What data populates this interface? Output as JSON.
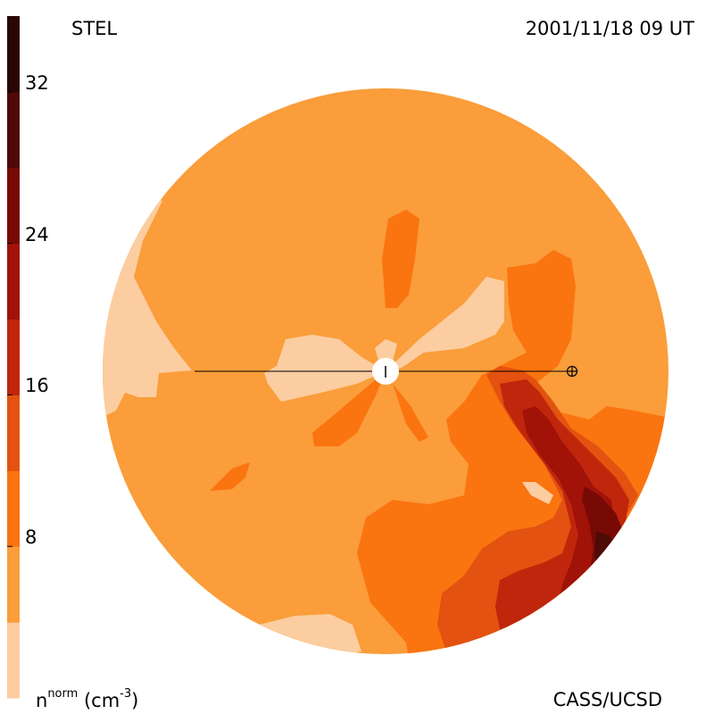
{
  "header": {
    "left": "STEL",
    "right": "2001/11/18 09 UT"
  },
  "footer": {
    "right": "CASS/UCSD",
    "units_base": "n",
    "units_sup": "norm",
    "units_rest": " (cm",
    "units_exp": "-3",
    "units_close": ")"
  },
  "colorbar": {
    "levels": [
      {
        "color": "#FCCDA0"
      },
      {
        "color": "#FA9D3A"
      },
      {
        "color": "#FA7410"
      },
      {
        "color": "#E35210"
      },
      {
        "color": "#C0260C"
      },
      {
        "color": "#A11208"
      },
      {
        "color": "#780A05"
      },
      {
        "color": "#4E0A06"
      },
      {
        "color": "#2A0604"
      }
    ],
    "ticks": [
      {
        "value": 8,
        "label": "8"
      },
      {
        "value": 16,
        "label": "16"
      },
      {
        "value": 24,
        "label": "24"
      },
      {
        "value": 32,
        "label": "32"
      }
    ]
  }
}
